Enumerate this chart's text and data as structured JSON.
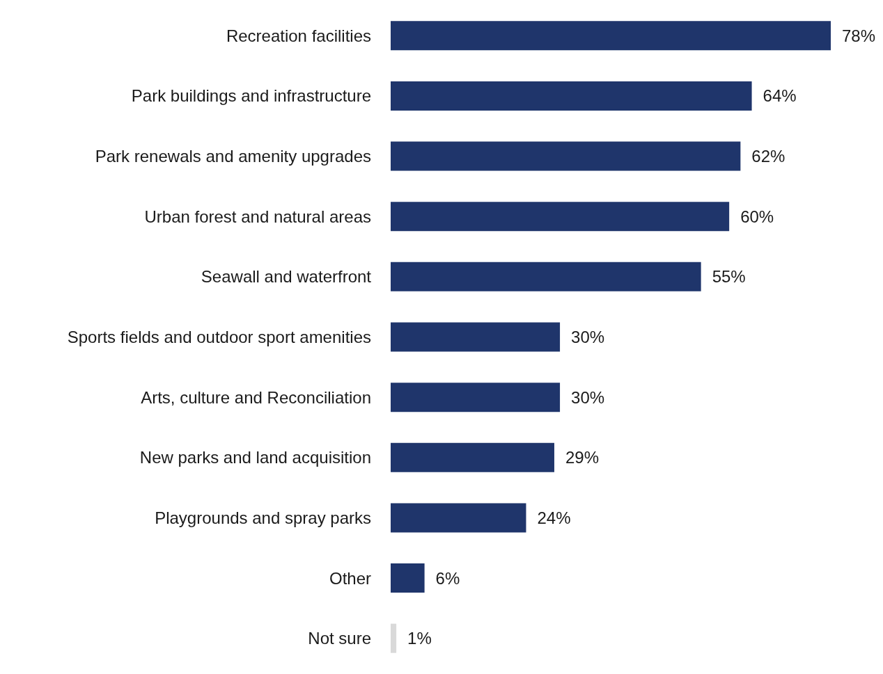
{
  "chart_data": {
    "type": "bar",
    "orientation": "horizontal",
    "categories": [
      "Recreation facilities",
      "Park buildings and infrastructure",
      "Park renewals and amenity upgrades",
      "Urban forest and natural areas",
      "Seawall and waterfront",
      "Sports fields and outdoor sport amenities",
      "Arts, culture and Reconciliation",
      "New parks and land acquisition",
      "Playgrounds and spray parks",
      "Other",
      "Not sure"
    ],
    "values": [
      78,
      64,
      62,
      60,
      55,
      30,
      30,
      29,
      24,
      6,
      1
    ],
    "colors": [
      "#1f356b",
      "#1f356b",
      "#1f356b",
      "#1f356b",
      "#1f356b",
      "#1f356b",
      "#1f356b",
      "#1f356b",
      "#1f356b",
      "#1f356b",
      "#d9d9d9"
    ],
    "value_labels": [
      "78%",
      "64%",
      "62%",
      "60%",
      "55%",
      "30%",
      "30%",
      "29%",
      "24%",
      "6%",
      "1%"
    ],
    "tick_labels": "y"
  }
}
